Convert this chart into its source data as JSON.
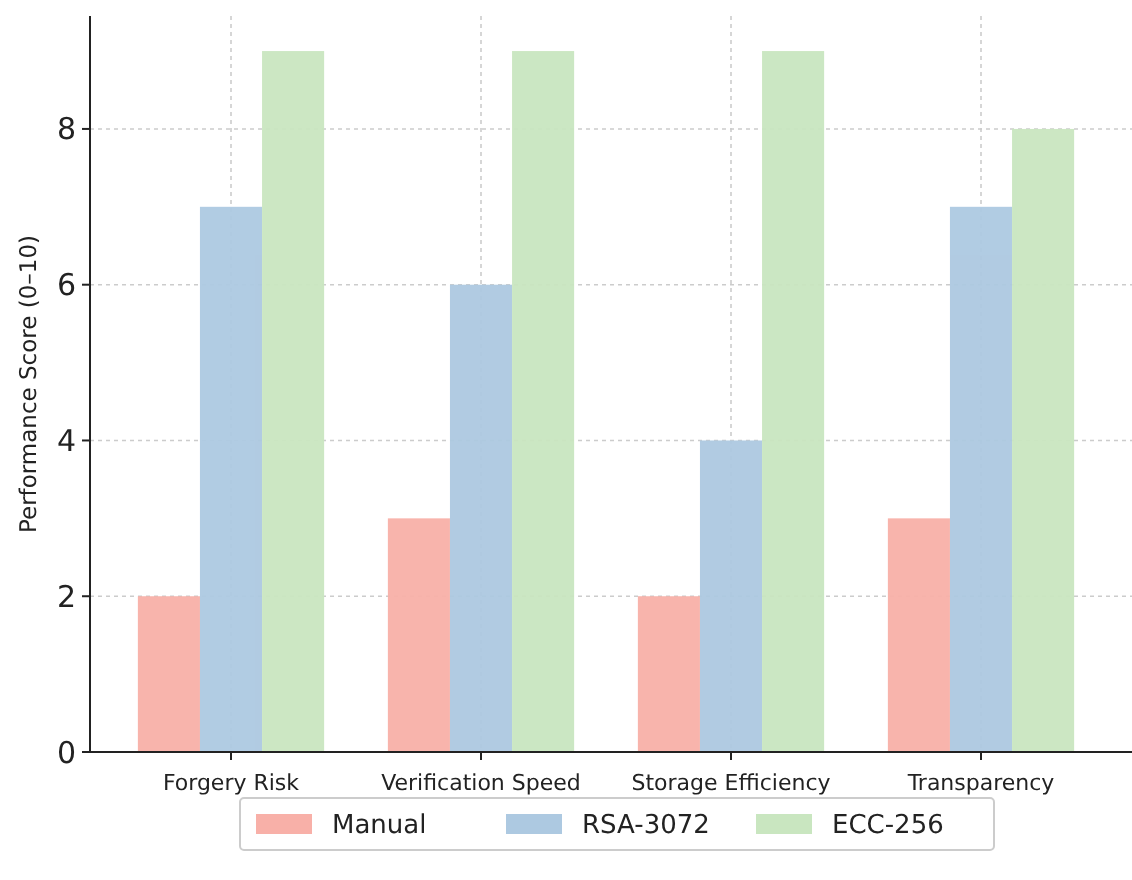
{
  "chart_data": {
    "type": "bar",
    "ylabel": "Performance Score (0–10)",
    "categories": [
      "Forgery Risk",
      "Verification Speed",
      "Storage Efficiency",
      "Transparency"
    ],
    "series": [
      {
        "name": "Manual",
        "color": "#f8b0a8",
        "values": [
          2,
          3,
          2,
          3
        ]
      },
      {
        "name": "RSA-3072",
        "color": "#adc9e1",
        "values": [
          7,
          6,
          4,
          7
        ]
      },
      {
        "name": "ECC-256",
        "color": "#c9e6c0",
        "values": [
          9,
          9,
          9,
          8
        ]
      }
    ],
    "ylim": [
      0,
      9.45
    ],
    "yticks": [
      0,
      2,
      4,
      6,
      8
    ],
    "grid": true,
    "legend": "bottom"
  }
}
